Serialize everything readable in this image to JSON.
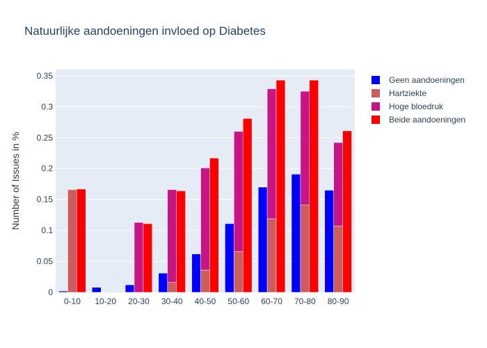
{
  "chart_data": {
    "type": "bar",
    "title": "Natuurlijke aandoeningen invloed op Diabetes",
    "ylabel": "Number of Issues in %",
    "xlabel": "",
    "categories": [
      "0-10",
      "10-20",
      "20-30",
      "30-40",
      "40-50",
      "50-60",
      "60-70",
      "70-80",
      "80-90"
    ],
    "ylim": [
      0,
      0.36
    ],
    "yticks": [
      "0",
      "0.05",
      "0.1",
      "0.15",
      "0.2",
      "0.25",
      "0.3",
      "0.35"
    ],
    "grid": true,
    "legend_position": "top-right",
    "series": [
      {
        "name": "Geen aandoeningen",
        "color": "#0000ff",
        "group": "a",
        "values": [
          0.002,
          0.008,
          0.012,
          0.031,
          0.062,
          0.111,
          0.17,
          0.191,
          0.165
        ]
      },
      {
        "name": "Hartziekte",
        "color": "#cd5c5c",
        "group": "b",
        "values": [
          0.166,
          0.0,
          0.0,
          0.016,
          0.036,
          0.066,
          0.119,
          0.141,
          0.107
        ]
      },
      {
        "name": "Hoge bloedruk",
        "color": "#c71585",
        "group": "b",
        "values": [
          0.0,
          0.0,
          0.113,
          0.15,
          0.165,
          0.194,
          0.21,
          0.184,
          0.135
        ]
      },
      {
        "name": "Beide aandoeningen",
        "color": "#ff0000",
        "group": "c",
        "values": [
          0.167,
          0.0,
          0.111,
          0.164,
          0.217,
          0.281,
          0.343,
          0.343,
          0.261
        ]
      }
    ]
  }
}
